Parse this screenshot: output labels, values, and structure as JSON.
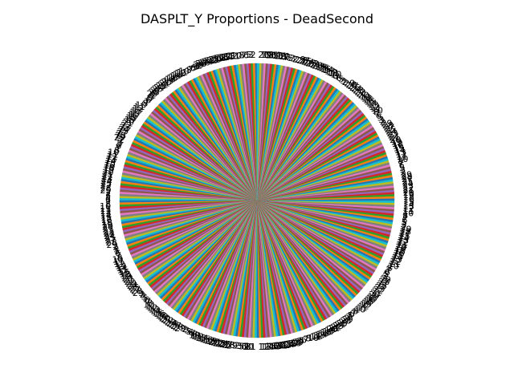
{
  "chart_data": {
    "type": "pie",
    "title": "DASPLT_Y Proportions - DeadSecond",
    "slice_count": 400,
    "legend": "none",
    "colors": [
      "#1f77b4",
      "#ff7f0e",
      "#2ca02c",
      "#d62728",
      "#9467bd",
      "#8c564b",
      "#e377c2",
      "#7f7f7f",
      "#bcbd22",
      "#17becf"
    ],
    "visible_labels": [
      "2",
      "3",
      "5",
      "6",
      "7",
      "8",
      "10",
      "11",
      "12",
      "13",
      "14",
      "15",
      "16",
      "18",
      "19",
      "20",
      "21",
      "22",
      "23",
      "24",
      "25",
      "27",
      "28",
      "29"
    ]
  }
}
